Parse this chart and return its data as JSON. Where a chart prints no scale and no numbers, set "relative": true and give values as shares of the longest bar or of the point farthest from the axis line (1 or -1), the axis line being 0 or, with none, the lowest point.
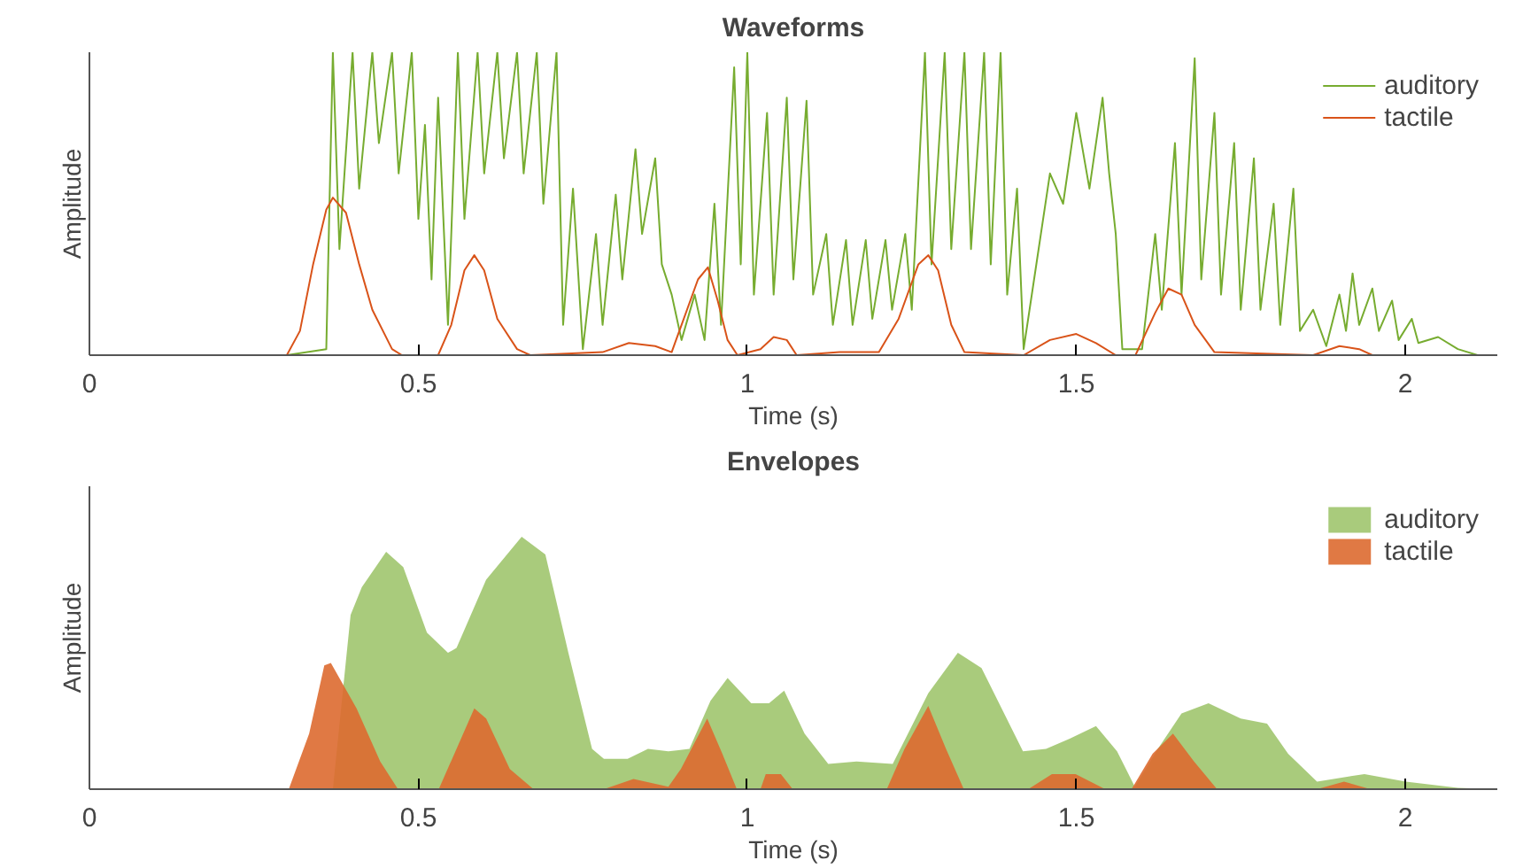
{
  "chart_data": [
    {
      "type": "line",
      "title": "Waveforms",
      "xlabel": "Time (s)",
      "ylabel": "Amplitude",
      "relative": true,
      "xlim": [
        0,
        2.14
      ],
      "xticks": [
        0,
        0.5,
        1,
        1.5,
        2
      ],
      "legend": "top right",
      "grid": false,
      "series": [
        {
          "name": "auditory",
          "color": "#77ac30",
          "x": [
            0,
            0.3,
            0.36,
            0.37,
            0.38,
            0.4,
            0.41,
            0.43,
            0.44,
            0.46,
            0.47,
            0.49,
            0.5,
            0.51,
            0.52,
            0.53,
            0.545,
            0.56,
            0.57,
            0.59,
            0.6,
            0.62,
            0.63,
            0.65,
            0.66,
            0.68,
            0.69,
            0.71,
            0.72,
            0.735,
            0.75,
            0.77,
            0.78,
            0.8,
            0.81,
            0.83,
            0.84,
            0.86,
            0.87,
            0.885,
            0.9,
            0.92,
            0.935,
            0.95,
            0.96,
            0.98,
            0.99,
            1.0,
            1.01,
            1.03,
            1.04,
            1.06,
            1.07,
            1.09,
            1.1,
            1.12,
            1.13,
            1.15,
            1.16,
            1.18,
            1.19,
            1.21,
            1.22,
            1.24,
            1.25,
            1.27,
            1.28,
            1.3,
            1.31,
            1.33,
            1.34,
            1.36,
            1.37,
            1.385,
            1.395,
            1.41,
            1.42,
            1.44,
            1.46,
            1.48,
            1.5,
            1.52,
            1.54,
            1.55,
            1.56,
            1.57,
            1.6,
            1.62,
            1.63,
            1.65,
            1.66,
            1.68,
            1.69,
            1.71,
            1.72,
            1.74,
            1.75,
            1.77,
            1.78,
            1.8,
            1.81,
            1.83,
            1.84,
            1.86,
            1.88,
            1.9,
            1.91,
            1.92,
            1.93,
            1.95,
            1.96,
            1.98,
            1.99,
            2.01,
            2.02,
            2.05,
            2.08,
            2.11,
            2.14
          ],
          "values": [
            0,
            0,
            0.02,
            1,
            0.35,
            1,
            0.55,
            1,
            0.7,
            1,
            0.6,
            1,
            0.45,
            0.76,
            0.25,
            0.85,
            0.1,
            1,
            0.45,
            1,
            0.6,
            1,
            0.65,
            1,
            0.6,
            1,
            0.5,
            1,
            0.1,
            0.55,
            0.02,
            0.4,
            0.1,
            0.53,
            0.25,
            0.68,
            0.4,
            0.65,
            0.3,
            0.2,
            0.05,
            0.2,
            0.05,
            0.5,
            0.1,
            0.95,
            0.3,
            1,
            0.2,
            0.8,
            0.2,
            0.85,
            0.25,
            0.84,
            0.2,
            0.4,
            0.1,
            0.38,
            0.1,
            0.38,
            0.12,
            0.38,
            0.15,
            0.4,
            0.15,
            1,
            0.3,
            1,
            0.35,
            1,
            0.35,
            1,
            0.3,
            1,
            0.2,
            0.55,
            0.02,
            0.31,
            0.6,
            0.5,
            0.8,
            0.55,
            0.85,
            0.6,
            0.4,
            0.02,
            0.02,
            0.4,
            0.15,
            0.7,
            0.2,
            0.98,
            0.25,
            0.8,
            0.2,
            0.7,
            0.15,
            0.65,
            0.15,
            0.5,
            0.1,
            0.55,
            0.08,
            0.15,
            0.03,
            0.2,
            0.08,
            0.27,
            0.1,
            0.22,
            0.08,
            0.18,
            0.05,
            0.12,
            0.04,
            0.06,
            0.02,
            0,
            0
          ]
        },
        {
          "name": "tactile",
          "color": "#d95319",
          "x": [
            0,
            0.3,
            0.32,
            0.34,
            0.36,
            0.37,
            0.39,
            0.41,
            0.43,
            0.46,
            0.475,
            0.53,
            0.55,
            0.57,
            0.585,
            0.6,
            0.62,
            0.65,
            0.67,
            0.78,
            0.82,
            0.86,
            0.885,
            0.9,
            0.925,
            0.94,
            0.955,
            0.97,
            0.985,
            1.02,
            1.04,
            1.06,
            1.075,
            1.14,
            1.2,
            1.23,
            1.26,
            1.275,
            1.29,
            1.31,
            1.33,
            1.42,
            1.46,
            1.5,
            1.53,
            1.56,
            1.59,
            1.62,
            1.64,
            1.66,
            1.68,
            1.71,
            1.86,
            1.9,
            1.93,
            1.95,
            2.14
          ],
          "values": [
            0,
            0,
            0.08,
            0.3,
            0.48,
            0.52,
            0.47,
            0.3,
            0.15,
            0.02,
            0,
            0,
            0.1,
            0.28,
            0.33,
            0.28,
            0.12,
            0.02,
            0,
            0.01,
            0.04,
            0.03,
            0.01,
            0.1,
            0.25,
            0.29,
            0.18,
            0.05,
            0,
            0.02,
            0.06,
            0.05,
            0,
            0.01,
            0.01,
            0.12,
            0.3,
            0.33,
            0.28,
            0.1,
            0.01,
            0,
            0.05,
            0.07,
            0.04,
            0,
            0,
            0.14,
            0.22,
            0.2,
            0.1,
            0.01,
            0,
            0.03,
            0.02,
            0,
            0
          ]
        }
      ]
    },
    {
      "type": "area",
      "title": "Envelopes",
      "xlabel": "Time (s)",
      "ylabel": "Amplitude",
      "relative": true,
      "xlim": [
        0,
        2.14
      ],
      "xticks": [
        0,
        0.5,
        1,
        1.5,
        2
      ],
      "legend": "top right",
      "grid": false,
      "series": [
        {
          "name": "auditory",
          "color": "#a0c56e",
          "x": [
            0,
            0.37,
            0.397,
            0.414,
            0.451,
            0.477,
            0.513,
            0.545,
            0.558,
            0.603,
            0.657,
            0.693,
            0.728,
            0.764,
            0.782,
            0.818,
            0.849,
            0.88,
            0.912,
            0.944,
            0.97,
            1.006,
            1.033,
            1.056,
            1.087,
            1.123,
            1.166,
            1.221,
            1.275,
            1.32,
            1.356,
            1.419,
            1.454,
            1.49,
            1.53,
            1.562,
            1.589,
            1.624,
            1.66,
            1.701,
            1.75,
            1.79,
            1.822,
            1.866,
            1.938,
            2.001,
            2.08,
            2.14
          ],
          "values": [
            0,
            0,
            0.69,
            0.8,
            0.94,
            0.88,
            0.62,
            0.54,
            0.56,
            0.83,
            1,
            0.93,
            0.54,
            0.16,
            0.12,
            0.12,
            0.16,
            0.15,
            0.16,
            0.35,
            0.44,
            0.34,
            0.34,
            0.39,
            0.22,
            0.1,
            0.11,
            0.1,
            0.38,
            0.54,
            0.48,
            0.15,
            0.16,
            0.2,
            0.25,
            0.15,
            0.01,
            0.16,
            0.3,
            0.34,
            0.28,
            0.26,
            0.14,
            0.03,
            0.06,
            0.03,
            0.005,
            0
          ]
        },
        {
          "name": "tactile",
          "color": "#dd6a30",
          "x": [
            0,
            0.303,
            0.334,
            0.357,
            0.367,
            0.406,
            0.442,
            0.469,
            0.531,
            0.558,
            0.585,
            0.603,
            0.639,
            0.675,
            0.782,
            0.827,
            0.88,
            0.899,
            0.939,
            0.962,
            0.984,
            1.02,
            1.028,
            1.051,
            1.069,
            1.212,
            1.239,
            1.275,
            1.302,
            1.329,
            1.427,
            1.463,
            1.499,
            1.544,
            1.584,
            1.616,
            1.647,
            1.679,
            1.714,
            1.866,
            1.907,
            1.947,
            2.14
          ],
          "values": [
            0,
            0,
            0.22,
            0.49,
            0.5,
            0.32,
            0.11,
            0,
            0,
            0.16,
            0.32,
            0.28,
            0.08,
            0,
            0,
            0.04,
            0.01,
            0.08,
            0.28,
            0.14,
            0,
            0,
            0.06,
            0.06,
            0,
            0,
            0.16,
            0.33,
            0.16,
            0,
            0,
            0.06,
            0.06,
            0,
            0,
            0.14,
            0.22,
            0.11,
            0,
            0,
            0.03,
            0,
            0
          ]
        }
      ]
    }
  ]
}
